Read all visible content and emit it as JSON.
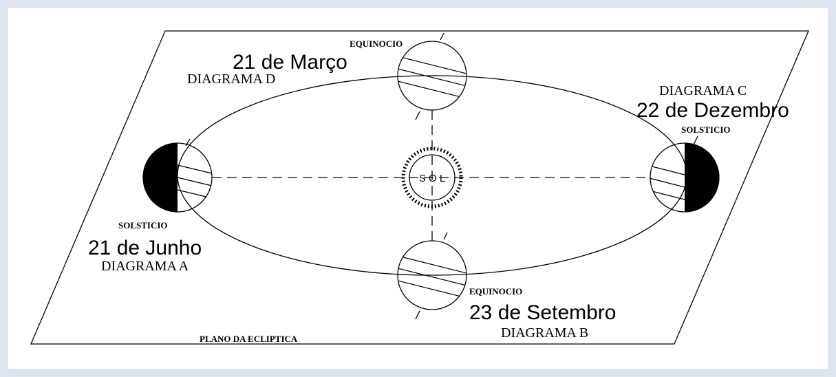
{
  "sun_label": "S O L",
  "plane_label": "PLANO DA ECLIPTICA",
  "positions": [
    {
      "event": "EQUINOCIO",
      "date": "21 de Março",
      "diagram": "DIAGRAMA D"
    },
    {
      "event": "SOLSTICIO",
      "date": "22 de Dezembro",
      "diagram": "DIAGRAMA C"
    },
    {
      "event": "SOLSTICIO",
      "date": "21 de Junho",
      "diagram": "DIAGRAMA A"
    },
    {
      "event": "EQUINOCIO",
      "date": "23 de Setembro",
      "diagram": "DIAGRAMA B"
    }
  ]
}
